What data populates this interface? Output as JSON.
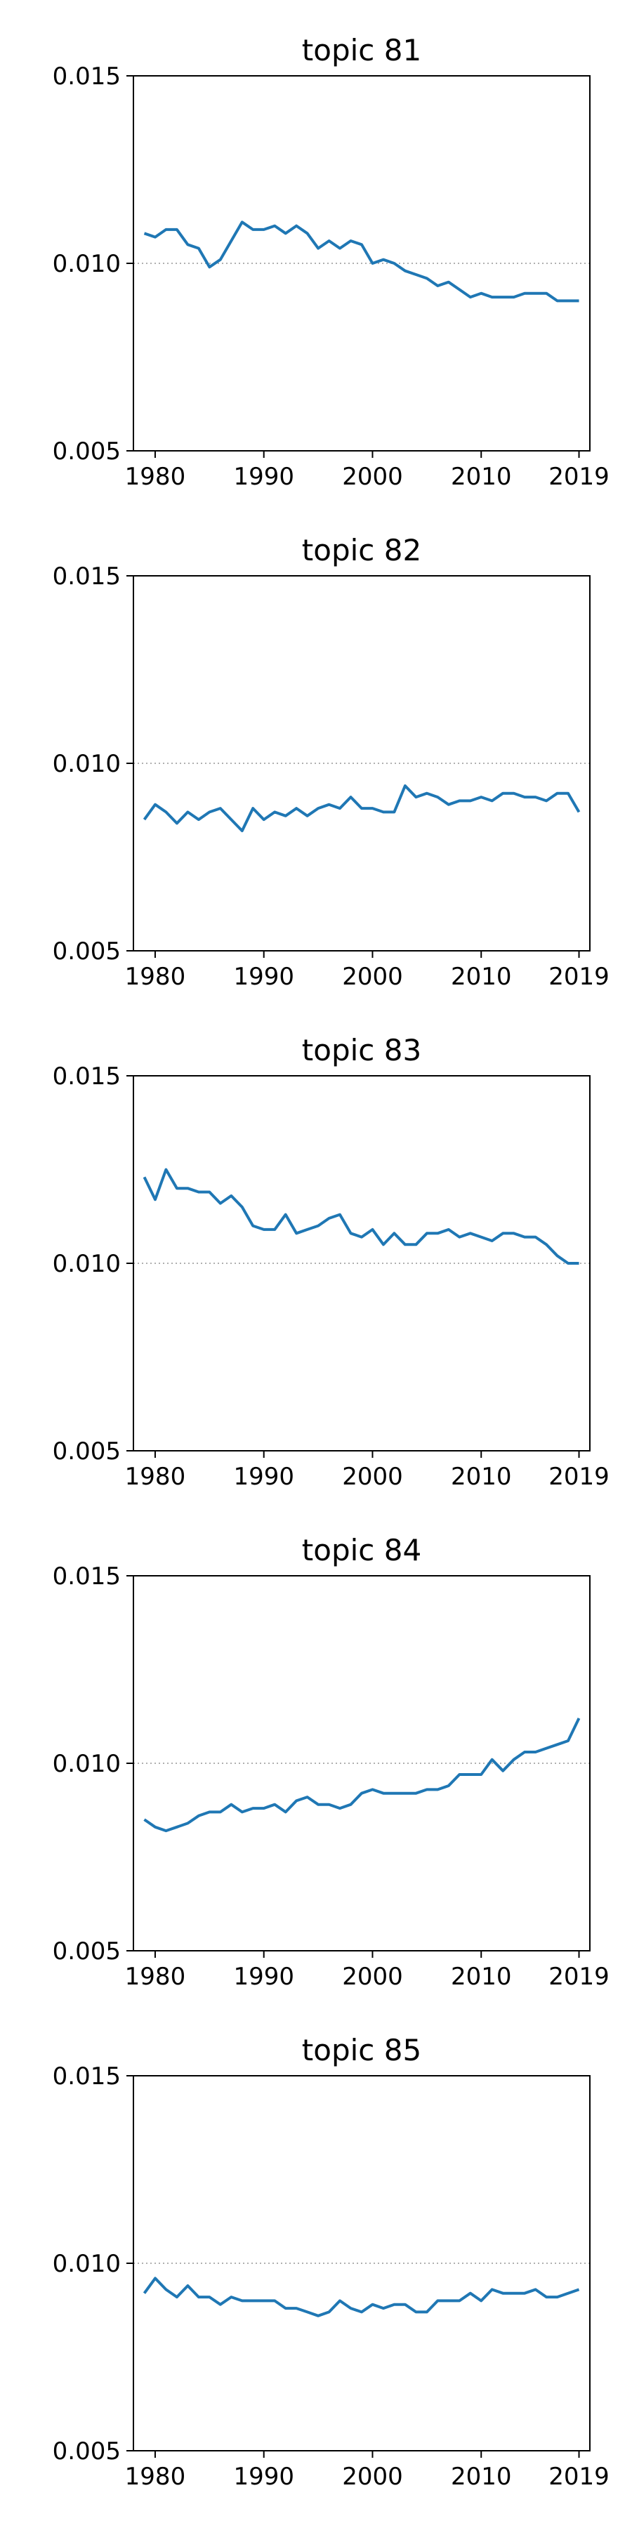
{
  "chart_data": [
    {
      "type": "line",
      "title": "topic 81",
      "xlabel": "",
      "ylabel": "",
      "xlim": [
        1978,
        2020
      ],
      "ylim": [
        0.005,
        0.015
      ],
      "xticks": [
        1980,
        1990,
        2000,
        2010,
        2019
      ],
      "yticks": [
        0.005,
        0.01,
        0.015
      ],
      "ytick_labels": [
        "0.005",
        "0.010",
        "0.015"
      ],
      "reference_line": 0.01,
      "grid": false,
      "series": [
        {
          "x": [
            1979,
            1980,
            1981,
            1982,
            1983,
            1984,
            1985,
            1986,
            1987,
            1988,
            1989,
            1990,
            1991,
            1992,
            1993,
            1994,
            1995,
            1996,
            1997,
            1998,
            1999,
            2000,
            2001,
            2002,
            2003,
            2004,
            2005,
            2006,
            2007,
            2008,
            2009,
            2010,
            2011,
            2012,
            2013,
            2014,
            2015,
            2016,
            2017,
            2018,
            2019
          ],
          "y": [
            0.0108,
            0.0107,
            0.0109,
            0.0109,
            0.0105,
            0.0104,
            0.0099,
            0.0101,
            0.0106,
            0.0111,
            0.0109,
            0.0109,
            0.011,
            0.0108,
            0.011,
            0.0108,
            0.0104,
            0.0106,
            0.0104,
            0.0106,
            0.0105,
            0.01,
            0.0101,
            0.01,
            0.0098,
            0.0097,
            0.0096,
            0.0094,
            0.0095,
            0.0093,
            0.0091,
            0.0092,
            0.0091,
            0.0091,
            0.0091,
            0.0092,
            0.0092,
            0.0092,
            0.009,
            0.009,
            0.009
          ]
        }
      ]
    },
    {
      "type": "line",
      "title": "topic 82",
      "xlabel": "",
      "ylabel": "",
      "xlim": [
        1978,
        2020
      ],
      "ylim": [
        0.005,
        0.015
      ],
      "xticks": [
        1980,
        1990,
        2000,
        2010,
        2019
      ],
      "yticks": [
        0.005,
        0.01,
        0.015
      ],
      "ytick_labels": [
        "0.005",
        "0.010",
        "0.015"
      ],
      "reference_line": 0.01,
      "grid": false,
      "series": [
        {
          "x": [
            1979,
            1980,
            1981,
            1982,
            1983,
            1984,
            1985,
            1986,
            1987,
            1988,
            1989,
            1990,
            1991,
            1992,
            1993,
            1994,
            1995,
            1996,
            1997,
            1998,
            1999,
            2000,
            2001,
            2002,
            2003,
            2004,
            2005,
            2006,
            2007,
            2008,
            2009,
            2010,
            2011,
            2012,
            2013,
            2014,
            2015,
            2016,
            2017,
            2018,
            2019
          ],
          "y": [
            0.0085,
            0.0089,
            0.0087,
            0.0084,
            0.0087,
            0.0085,
            0.0087,
            0.0088,
            0.0085,
            0.0082,
            0.0088,
            0.0085,
            0.0087,
            0.0086,
            0.0088,
            0.0086,
            0.0088,
            0.0089,
            0.0088,
            0.0091,
            0.0088,
            0.0088,
            0.0087,
            0.0087,
            0.0094,
            0.0091,
            0.0092,
            0.0091,
            0.0089,
            0.009,
            0.009,
            0.0091,
            0.009,
            0.0092,
            0.0092,
            0.0091,
            0.0091,
            0.009,
            0.0092,
            0.0092,
            0.0087
          ]
        }
      ]
    },
    {
      "type": "line",
      "title": "topic 83",
      "xlabel": "",
      "ylabel": "",
      "xlim": [
        1978,
        2020
      ],
      "ylim": [
        0.005,
        0.015
      ],
      "xticks": [
        1980,
        1990,
        2000,
        2010,
        2019
      ],
      "yticks": [
        0.005,
        0.01,
        0.015
      ],
      "ytick_labels": [
        "0.005",
        "0.010",
        "0.015"
      ],
      "reference_line": 0.01,
      "grid": false,
      "series": [
        {
          "x": [
            1979,
            1980,
            1981,
            1982,
            1983,
            1984,
            1985,
            1986,
            1987,
            1988,
            1989,
            1990,
            1991,
            1992,
            1993,
            1994,
            1995,
            1996,
            1997,
            1998,
            1999,
            2000,
            2001,
            2002,
            2003,
            2004,
            2005,
            2006,
            2007,
            2008,
            2009,
            2010,
            2011,
            2012,
            2013,
            2014,
            2015,
            2016,
            2017,
            2018,
            2019
          ],
          "y": [
            0.0123,
            0.0117,
            0.0125,
            0.012,
            0.012,
            0.0119,
            0.0119,
            0.0116,
            0.0118,
            0.0115,
            0.011,
            0.0109,
            0.0109,
            0.0113,
            0.0108,
            0.0109,
            0.011,
            0.0112,
            0.0113,
            0.0108,
            0.0107,
            0.0109,
            0.0105,
            0.0108,
            0.0105,
            0.0105,
            0.0108,
            0.0108,
            0.0109,
            0.0107,
            0.0108,
            0.0107,
            0.0106,
            0.0108,
            0.0108,
            0.0107,
            0.0107,
            0.0105,
            0.0102,
            0.01,
            0.01
          ]
        }
      ]
    },
    {
      "type": "line",
      "title": "topic 84",
      "xlabel": "",
      "ylabel": "",
      "xlim": [
        1978,
        2020
      ],
      "ylim": [
        0.005,
        0.015
      ],
      "xticks": [
        1980,
        1990,
        2000,
        2010,
        2019
      ],
      "yticks": [
        0.005,
        0.01,
        0.015
      ],
      "ytick_labels": [
        "0.005",
        "0.010",
        "0.015"
      ],
      "reference_line": 0.01,
      "grid": false,
      "series": [
        {
          "x": [
            1979,
            1980,
            1981,
            1982,
            1983,
            1984,
            1985,
            1986,
            1987,
            1988,
            1989,
            1990,
            1991,
            1992,
            1993,
            1994,
            1995,
            1996,
            1997,
            1998,
            1999,
            2000,
            2001,
            2002,
            2003,
            2004,
            2005,
            2006,
            2007,
            2008,
            2009,
            2010,
            2011,
            2012,
            2013,
            2014,
            2015,
            2016,
            2017,
            2018,
            2019
          ],
          "y": [
            0.0085,
            0.0083,
            0.0082,
            0.0083,
            0.0084,
            0.0086,
            0.0087,
            0.0087,
            0.0089,
            0.0087,
            0.0088,
            0.0088,
            0.0089,
            0.0087,
            0.009,
            0.0091,
            0.0089,
            0.0089,
            0.0088,
            0.0089,
            0.0092,
            0.0093,
            0.0092,
            0.0092,
            0.0092,
            0.0092,
            0.0093,
            0.0093,
            0.0094,
            0.0097,
            0.0097,
            0.0097,
            0.0101,
            0.0098,
            0.0101,
            0.0103,
            0.0103,
            0.0104,
            0.0105,
            0.0106,
            0.0112
          ]
        }
      ]
    },
    {
      "type": "line",
      "title": "topic 85",
      "xlabel": "",
      "ylabel": "",
      "xlim": [
        1978,
        2020
      ],
      "ylim": [
        0.005,
        0.015
      ],
      "xticks": [
        1980,
        1990,
        2000,
        2010,
        2019
      ],
      "yticks": [
        0.005,
        0.01,
        0.015
      ],
      "ytick_labels": [
        "0.005",
        "0.010",
        "0.015"
      ],
      "reference_line": 0.01,
      "grid": false,
      "series": [
        {
          "x": [
            1979,
            1980,
            1981,
            1982,
            1983,
            1984,
            1985,
            1986,
            1987,
            1988,
            1989,
            1990,
            1991,
            1992,
            1993,
            1994,
            1995,
            1996,
            1997,
            1998,
            1999,
            2000,
            2001,
            2002,
            2003,
            2004,
            2005,
            2006,
            2007,
            2008,
            2009,
            2010,
            2011,
            2012,
            2013,
            2014,
            2015,
            2016,
            2017,
            2018,
            2019
          ],
          "y": [
            0.0092,
            0.0096,
            0.0093,
            0.0091,
            0.0094,
            0.0091,
            0.0091,
            0.0089,
            0.0091,
            0.009,
            0.009,
            0.009,
            0.009,
            0.0088,
            0.0088,
            0.0087,
            0.0086,
            0.0087,
            0.009,
            0.0088,
            0.0087,
            0.0089,
            0.0088,
            0.0089,
            0.0089,
            0.0087,
            0.0087,
            0.009,
            0.009,
            0.009,
            0.0092,
            0.009,
            0.0093,
            0.0092,
            0.0092,
            0.0092,
            0.0093,
            0.0091,
            0.0091,
            0.0092,
            0.0093
          ]
        }
      ]
    }
  ],
  "colors": {
    "line": "#1f77b4",
    "reference": "#b0b0b0",
    "axis": "#000000",
    "background": "#ffffff"
  }
}
